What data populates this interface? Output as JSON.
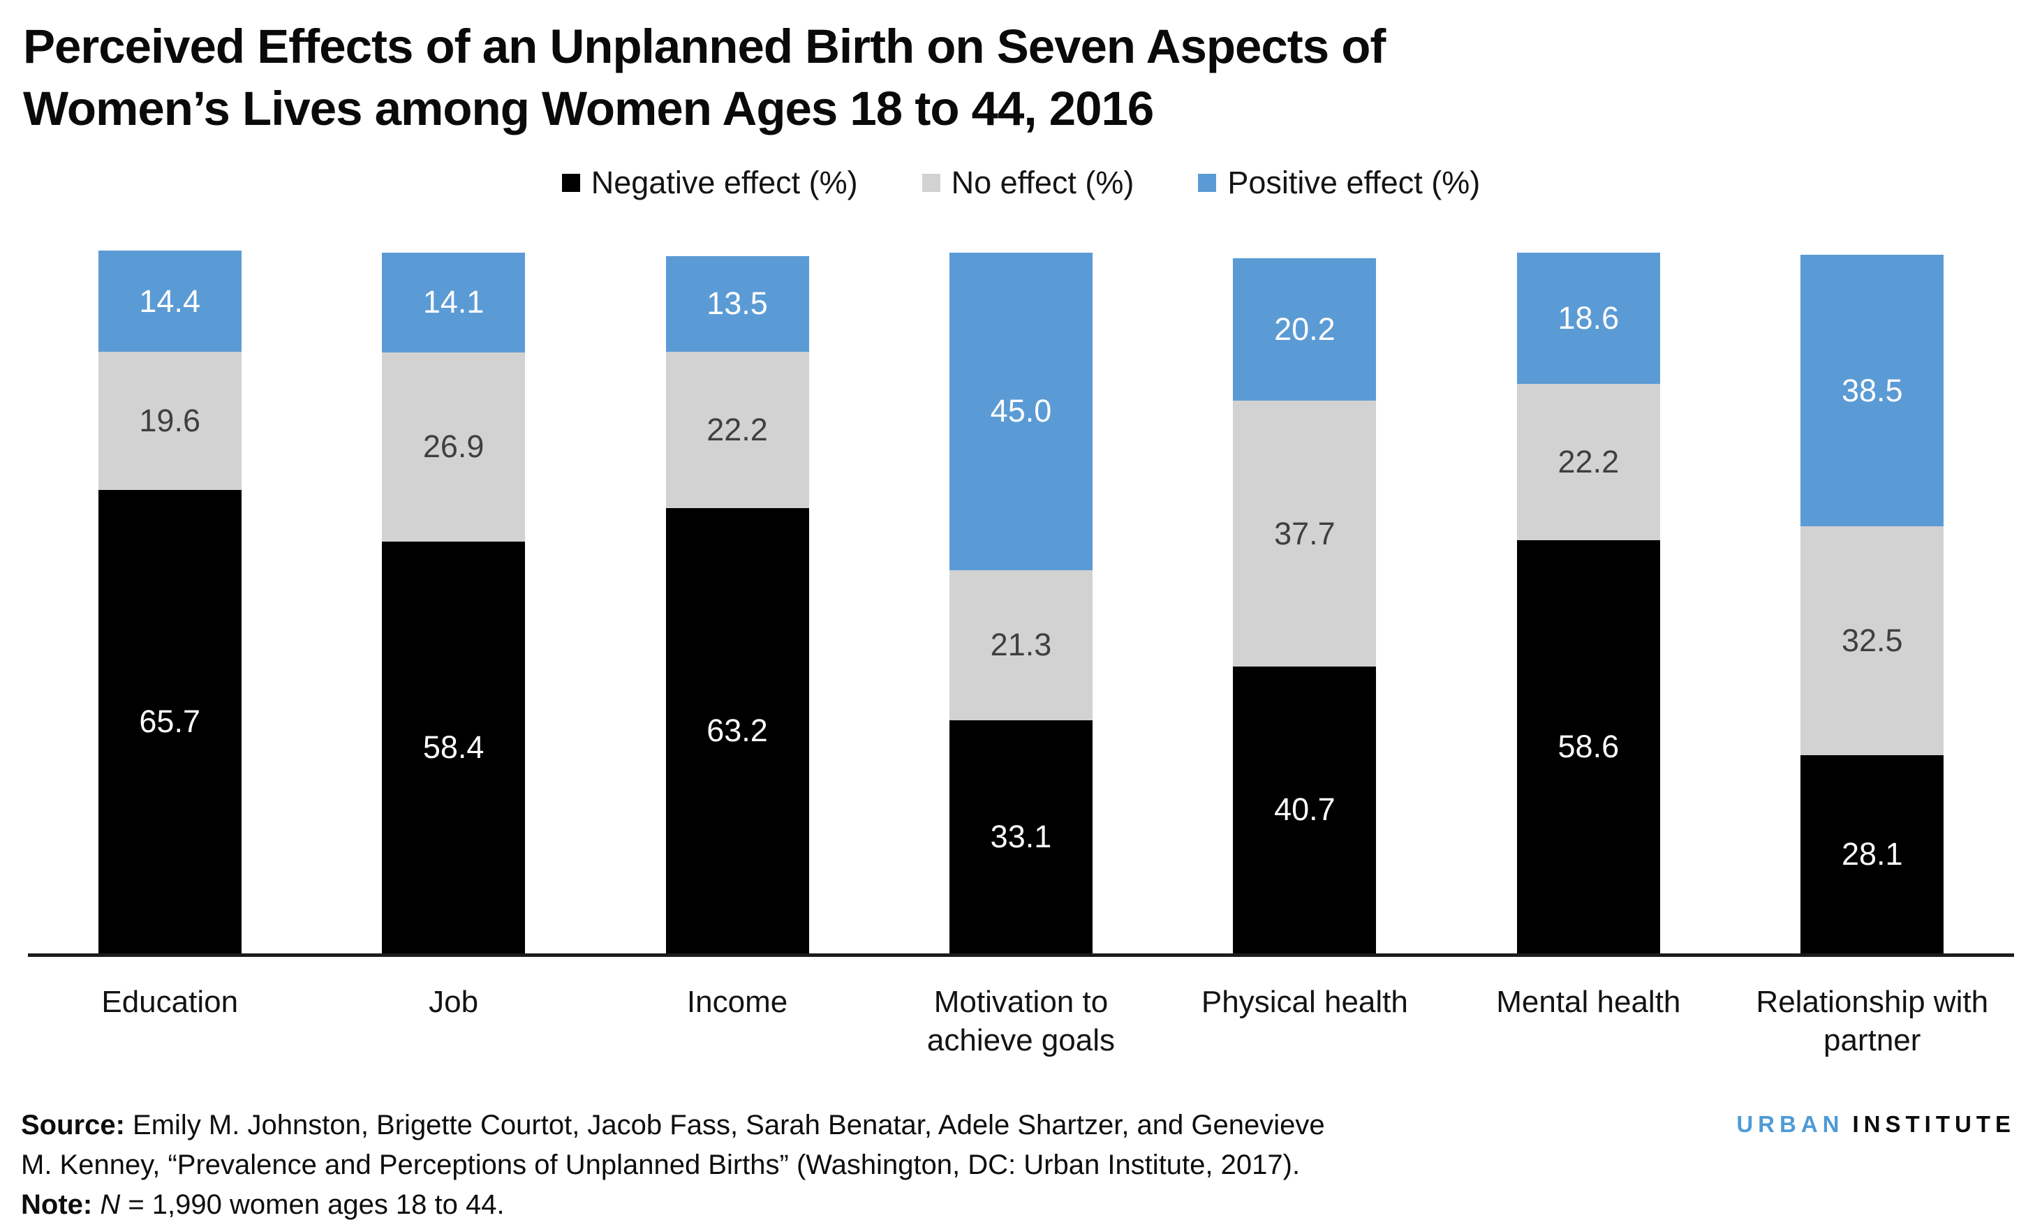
{
  "title": {
    "line1": "Perceived Effects of an Unplanned Birth on Seven Aspects of",
    "line2": "Women’s Lives among Women Ages 18 to 44, 2016"
  },
  "chart_data": {
    "type": "bar",
    "stacked": true,
    "orientation": "vertical",
    "units": "percent",
    "ylim": [
      0,
      100
    ],
    "grid": false,
    "legend_position": "top-center",
    "categories": [
      "Education",
      "Job",
      "Income",
      "Motivation to achieve goals",
      "Physical health",
      "Mental health",
      "Relationship with partner"
    ],
    "series": [
      {
        "key": "negative",
        "name": "Negative effect (%)",
        "color": "#000000",
        "label_color": "#ffffff",
        "values": [
          65.7,
          58.4,
          63.2,
          33.1,
          40.7,
          58.6,
          28.1
        ]
      },
      {
        "key": "no-effect",
        "name": "No effect (%)",
        "color": "#d2d2d2",
        "label_color": "#3f3f3f",
        "values": [
          19.6,
          26.9,
          22.2,
          21.3,
          37.7,
          22.2,
          32.5
        ]
      },
      {
        "key": "positive",
        "name": "Positive effect (%)",
        "color": "#5b9bd5",
        "label_color": "#ffffff",
        "values": [
          14.4,
          14.1,
          13.5,
          45.0,
          20.2,
          18.6,
          38.5
        ]
      }
    ]
  },
  "footer": {
    "source_label": "Source: ",
    "source_line1": "Emily M. Johnston, Brigette Courtot, Jacob Fass, Sarah Benatar, Adele Shartzer, and Genevieve",
    "source_line2": "M. Kenney, “Prevalence and Perceptions of Unplanned Births” (Washington, DC: Urban Institute, 2017).",
    "note_label": "Note: ",
    "note_italic": "N",
    "note_rest": " = 1,990 women ages 18 to 44."
  },
  "logo": {
    "word1": "URBAN",
    "word2": "INSTITUTE"
  }
}
